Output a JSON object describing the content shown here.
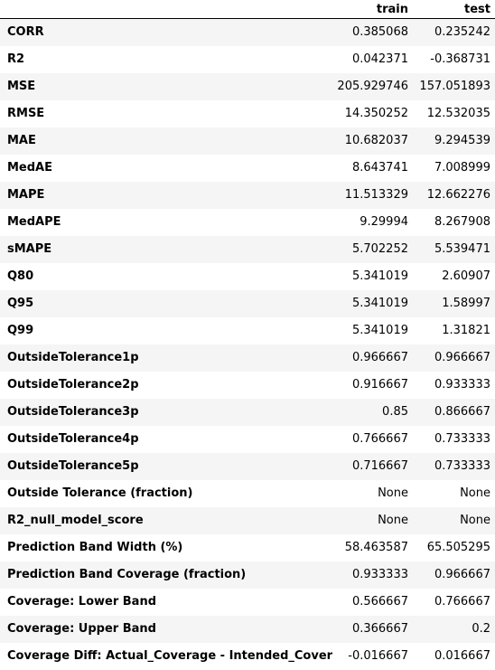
{
  "table": {
    "columns": [
      "",
      "train",
      "test"
    ],
    "rows": [
      {
        "label": "CORR",
        "train": "0.385068",
        "test": "0.235242"
      },
      {
        "label": "R2",
        "train": "0.042371",
        "test": "-0.368731"
      },
      {
        "label": "MSE",
        "train": "205.929746",
        "test": "157.051893"
      },
      {
        "label": "RMSE",
        "train": "14.350252",
        "test": "12.532035"
      },
      {
        "label": "MAE",
        "train": "10.682037",
        "test": "9.294539"
      },
      {
        "label": "MedAE",
        "train": "8.643741",
        "test": "7.008999"
      },
      {
        "label": "MAPE",
        "train": "11.513329",
        "test": "12.662276"
      },
      {
        "label": "MedAPE",
        "train": "9.29994",
        "test": "8.267908"
      },
      {
        "label": "sMAPE",
        "train": "5.702252",
        "test": "5.539471"
      },
      {
        "label": "Q80",
        "train": "5.341019",
        "test": "2.60907"
      },
      {
        "label": "Q95",
        "train": "5.341019",
        "test": "1.58997"
      },
      {
        "label": "Q99",
        "train": "5.341019",
        "test": "1.31821"
      },
      {
        "label": "OutsideTolerance1p",
        "train": "0.966667",
        "test": "0.966667"
      },
      {
        "label": "OutsideTolerance2p",
        "train": "0.916667",
        "test": "0.933333"
      },
      {
        "label": "OutsideTolerance3p",
        "train": "0.85",
        "test": "0.866667"
      },
      {
        "label": "OutsideTolerance4p",
        "train": "0.766667",
        "test": "0.733333"
      },
      {
        "label": "OutsideTolerance5p",
        "train": "0.716667",
        "test": "0.733333"
      },
      {
        "label": "Outside Tolerance (fraction)",
        "train": "None",
        "test": "None"
      },
      {
        "label": "R2_null_model_score",
        "train": "None",
        "test": "None"
      },
      {
        "label": "Prediction Band Width (%)",
        "train": "58.463587",
        "test": "65.505295"
      },
      {
        "label": "Prediction Band Coverage (fraction)",
        "train": "0.933333",
        "test": "0.966667"
      },
      {
        "label": "Coverage: Lower Band",
        "train": "0.566667",
        "test": "0.766667"
      },
      {
        "label": "Coverage: Upper Band",
        "train": "0.366667",
        "test": "0.2"
      },
      {
        "label": "Coverage Diff: Actual_Coverage - Intended_Coverage",
        "train": "-0.016667",
        "test": "0.016667"
      }
    ]
  }
}
